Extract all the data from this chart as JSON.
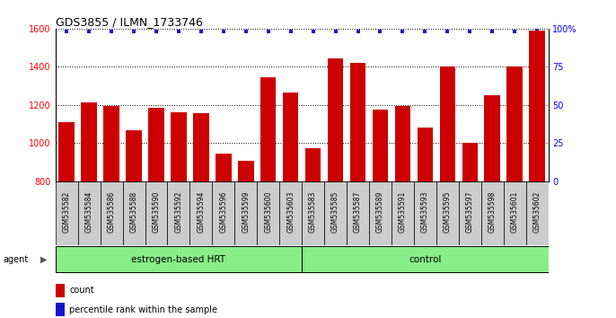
{
  "title": "GDS3855 / ILMN_1733746",
  "categories": [
    "GSM535582",
    "GSM535584",
    "GSM535586",
    "GSM535588",
    "GSM535590",
    "GSM535592",
    "GSM535594",
    "GSM535596",
    "GSM535599",
    "GSM535600",
    "GSM535603",
    "GSM535583",
    "GSM535585",
    "GSM535587",
    "GSM535589",
    "GSM535591",
    "GSM535593",
    "GSM535595",
    "GSM535597",
    "GSM535598",
    "GSM535601",
    "GSM535602"
  ],
  "bar_values": [
    1110,
    1215,
    1195,
    1065,
    1185,
    1160,
    1155,
    945,
    905,
    1345,
    1265,
    975,
    1445,
    1420,
    1175,
    1195,
    1080,
    1400,
    1000,
    1250,
    1400,
    1590
  ],
  "percentile_values": [
    98,
    98,
    98,
    98,
    98,
    98,
    98,
    98,
    98,
    98,
    98,
    98,
    98,
    98,
    98,
    98,
    98,
    98,
    98,
    98,
    98,
    100
  ],
  "bar_color": "#cc0000",
  "dot_color": "#1515cc",
  "ylim_left": [
    800,
    1600
  ],
  "ylim_right": [
    0,
    100
  ],
  "yticks_left": [
    800,
    1000,
    1200,
    1400,
    1600
  ],
  "yticks_right": [
    0,
    25,
    50,
    75,
    100
  ],
  "ytick_labels_right": [
    "0",
    "25",
    "50",
    "75",
    "100%"
  ],
  "group1_label": "estrogen-based HRT",
  "group1_count": 11,
  "group2_label": "control",
  "group2_count": 11,
  "group_color": "#88ee88",
  "agent_label": "agent",
  "legend_count_label": "count",
  "legend_pct_label": "percentile rank within the sample",
  "bar_width": 0.7,
  "plot_bg": "#ffffff",
  "tick_label_bg": "#cccccc",
  "fig_bg": "#ffffff"
}
